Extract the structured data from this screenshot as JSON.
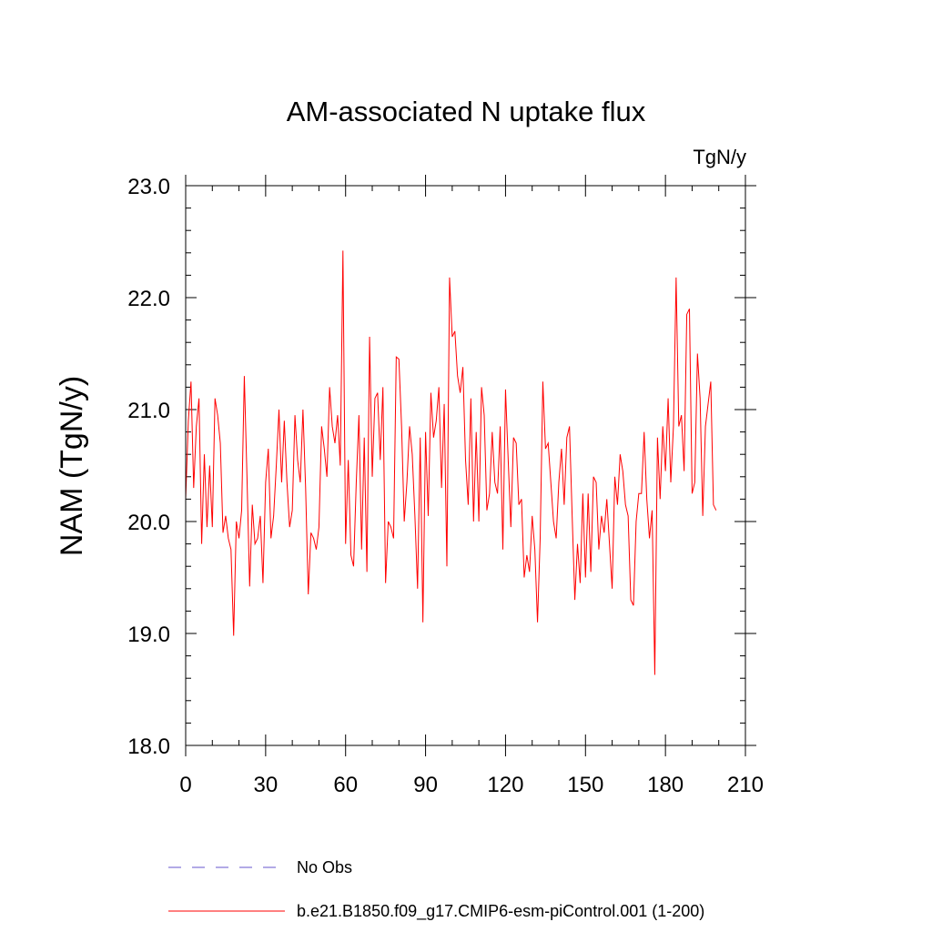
{
  "chart_data": {
    "type": "line",
    "title": "AM-associated N uptake flux",
    "units": "TgN/y",
    "xlabel": "",
    "ylabel": "NAM  (TgN/y)",
    "xlim": [
      0,
      210
    ],
    "ylim": [
      18.0,
      23.0
    ],
    "x_ticks": [
      0,
      30,
      60,
      90,
      120,
      150,
      180,
      210
    ],
    "x_tick_labels": [
      "0",
      "30",
      "60",
      "90",
      "120",
      "150",
      "180",
      "210"
    ],
    "y_ticks": [
      18.0,
      19.0,
      20.0,
      21.0,
      22.0,
      23.0
    ],
    "y_tick_labels": [
      "18.0",
      "19.0",
      "20.0",
      "21.0",
      "22.0",
      "23.0"
    ],
    "x_minor_step": 10,
    "y_minor_step": 0.2,
    "series": [
      {
        "name": "b.e21.B1850.f09_g17.CMIP6-esm-piControl.001 (1-200)",
        "color": "#ff0000",
        "x_start": 0,
        "values": [
          20.2,
          20.9,
          21.25,
          20.3,
          20.85,
          21.1,
          19.8,
          20.6,
          19.95,
          20.5,
          19.95,
          21.1,
          20.95,
          20.7,
          19.9,
          20.05,
          19.85,
          19.75,
          18.98,
          20.0,
          19.85,
          20.1,
          21.3,
          20.4,
          19.42,
          20.15,
          19.8,
          19.85,
          20.05,
          19.45,
          20.35,
          20.65,
          19.85,
          20.05,
          20.5,
          21.0,
          20.35,
          20.9,
          20.35,
          19.95,
          20.1,
          20.95,
          20.55,
          20.35,
          21.0,
          20.3,
          19.35,
          19.9,
          19.85,
          19.75,
          19.95,
          20.85,
          20.65,
          20.4,
          21.2,
          20.85,
          20.7,
          20.95,
          20.5,
          22.42,
          19.8,
          20.55,
          19.7,
          19.6,
          20.35,
          20.95,
          19.75,
          20.75,
          19.55,
          21.65,
          20.4,
          21.1,
          21.15,
          20.55,
          21.2,
          19.45,
          20.0,
          19.95,
          19.85,
          21.47,
          21.45,
          20.85,
          20.0,
          20.35,
          20.85,
          20.6,
          20.05,
          19.4,
          20.75,
          19.1,
          20.8,
          20.05,
          21.15,
          20.75,
          20.9,
          21.2,
          20.3,
          21.05,
          19.6,
          22.18,
          21.65,
          21.7,
          21.3,
          21.15,
          21.38,
          20.55,
          20.15,
          21.1,
          20.0,
          20.8,
          20.0,
          21.2,
          20.95,
          20.1,
          20.25,
          20.8,
          20.35,
          20.25,
          20.85,
          19.75,
          21.18,
          20.55,
          19.95,
          20.75,
          20.7,
          20.15,
          20.2,
          19.5,
          19.7,
          19.55,
          20.05,
          19.75,
          19.1,
          19.85,
          21.25,
          20.65,
          20.7,
          20.35,
          20.0,
          19.85,
          20.35,
          20.65,
          20.15,
          20.75,
          20.85,
          20.05,
          19.3,
          19.8,
          19.45,
          20.25,
          19.5,
          20.25,
          19.55,
          20.4,
          20.35,
          19.75,
          20.05,
          19.9,
          20.2,
          19.8,
          19.4,
          20.4,
          20.15,
          20.6,
          20.45,
          20.15,
          20.05,
          19.3,
          19.25,
          20.0,
          20.25,
          20.25,
          20.8,
          20.2,
          19.85,
          20.1,
          18.63,
          20.75,
          20.2,
          20.85,
          20.45,
          21.1,
          20.35,
          20.85,
          22.18,
          20.85,
          20.95,
          20.45,
          21.85,
          21.9,
          20.25,
          20.35,
          21.5,
          21.1,
          20.05,
          20.85,
          21.05,
          21.25,
          20.15,
          20.1
        ]
      }
    ],
    "legend": [
      {
        "label": "No Obs",
        "color": "#6655cc",
        "style": "dashed"
      },
      {
        "label": "b.e21.B1850.f09_g17.CMIP6-esm-piControl.001 (1-200)",
        "color": "#ff0000",
        "style": "solid"
      }
    ]
  }
}
